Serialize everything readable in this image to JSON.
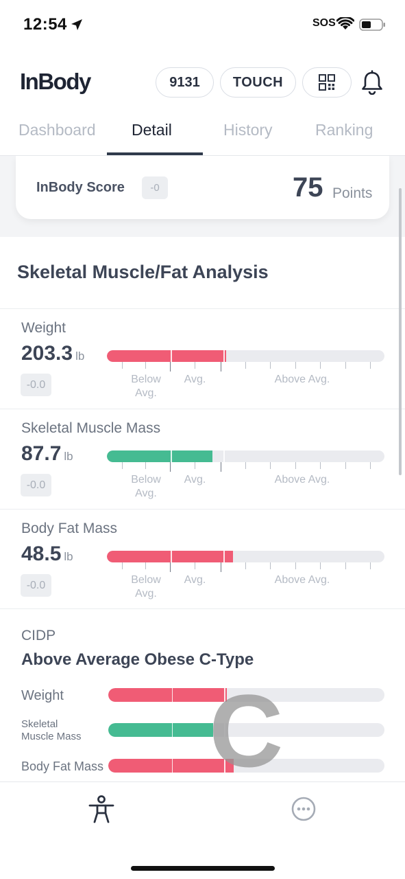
{
  "status_bar": {
    "time": "12:54",
    "sos": "SOS",
    "icons": [
      "location-arrow-icon",
      "wifi-icon",
      "battery-icon"
    ]
  },
  "header": {
    "logo": "InBody",
    "id_pill": "9131",
    "touch_pill": "TOUCH",
    "icons": [
      "qr-code-icon",
      "bell-icon"
    ]
  },
  "tabs": [
    {
      "label": "Dashboard",
      "active": false
    },
    {
      "label": "Detail",
      "active": true
    },
    {
      "label": "History",
      "active": false
    },
    {
      "label": "Ranking",
      "active": false
    }
  ],
  "score": {
    "label": "InBody Score",
    "delta": "-0",
    "value": "75",
    "unit": "Points"
  },
  "section": {
    "title": "Skeletal Muscle/Fat Analysis"
  },
  "scale_labels": {
    "below": "Below\nAvg.",
    "avg": "Avg.",
    "above": "Above Avg."
  },
  "metrics": [
    {
      "label": "Weight",
      "value": "203.3",
      "unit": "lb",
      "delta": "-0.0",
      "fill_fraction": 0.43,
      "color": "#f05c75"
    },
    {
      "label": "Skeletal Muscle Mass",
      "value": "87.7",
      "unit": "lb",
      "delta": "-0.0",
      "fill_fraction": 0.38,
      "color": "#45bb92"
    },
    {
      "label": "Body Fat Mass",
      "value": "48.5",
      "unit": "lb",
      "delta": "-0.0",
      "fill_fraction": 0.455,
      "color": "#f05c75"
    }
  ],
  "cidp": {
    "label": "CIDP",
    "type": "Above Average Obese C-Type",
    "letter": "C",
    "rows": [
      {
        "label": "Weight",
        "fill_fraction": 0.43,
        "color": "#f05c75"
      },
      {
        "label": "Skeletal\nMuscle Mass",
        "fill_fraction": 0.38,
        "color": "#45bb92"
      },
      {
        "label": "Body Fat Mass",
        "fill_fraction": 0.455,
        "color": "#f05c75"
      }
    ]
  },
  "bottom_nav": {
    "icons": [
      "body-figure-icon",
      "more-options-icon"
    ]
  }
}
